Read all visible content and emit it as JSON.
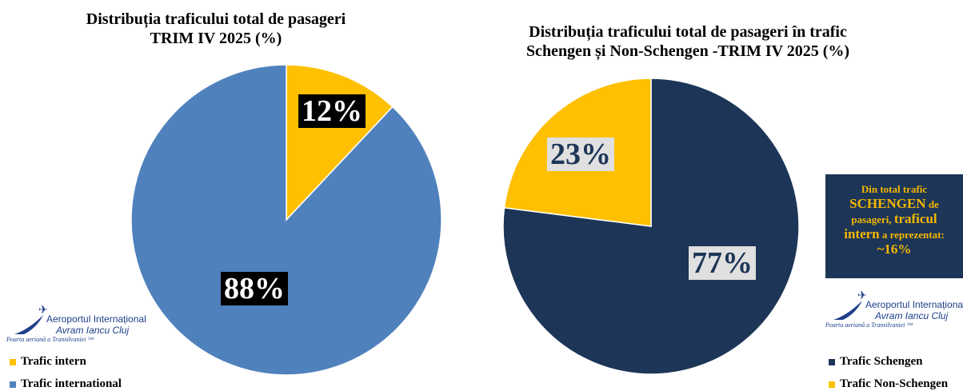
{
  "colors": {
    "intern": "#fec000",
    "international": "#4f81bd",
    "schengen": "#1d3557",
    "non_schengen": "#fec000",
    "info_text": "#f5b800"
  },
  "chart_data": [
    {
      "type": "pie",
      "title": "Distribuția traficului total de pasageri TRIM IV 2025 (%)",
      "title_lines": [
        "Distribuția traficului total de pasageri",
        "TRIM IV 2025 (%)"
      ],
      "categories": [
        "Trafic intern",
        "Trafic international"
      ],
      "values": [
        12,
        88
      ],
      "labels": [
        "12%",
        "88%"
      ],
      "legend_position": "bottom-left"
    },
    {
      "type": "pie",
      "title": "Distribuția traficului total de pasageri în trafic Schengen și Non-Schengen -TRIM IV 2025 (%)",
      "title_lines": [
        "Distribuția traficului total de pasageri în trafic",
        "Schengen și Non-Schengen -TRIM IV 2025 (%)"
      ],
      "categories": [
        "Trafic Schengen",
        "Trafic Non-Schengen"
      ],
      "values": [
        77,
        23
      ],
      "labels": [
        "77%",
        "23%"
      ],
      "legend_position": "bottom-right"
    }
  ],
  "info_box": {
    "line1": "Din total trafic",
    "schengen": "SCHENGEN",
    "de": " de",
    "pasageri": "pasageri, ",
    "traficul": "traficul",
    "intern": "intern",
    "rest": " a reprezentat:",
    "value": "~16%"
  },
  "logo": {
    "line1": "Aeroportul Internațional",
    "line2": "Avram Iancu Cluj",
    "tagline": "Poarta aeriană a Transilvaniei ™"
  }
}
